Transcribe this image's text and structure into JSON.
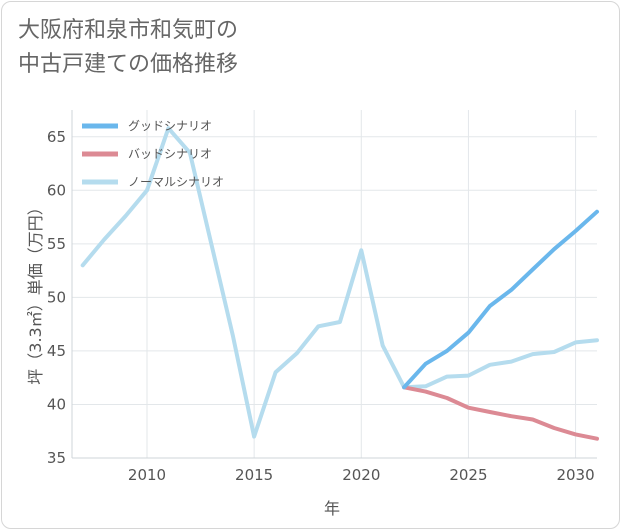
{
  "title_lines": [
    "大阪府和泉市和気町の",
    "中古戸建ての価格推移"
  ],
  "chart_data": {
    "type": "line",
    "title": "大阪府和泉市和気町の中古戸建ての価格推移",
    "xlabel": "年",
    "ylabel": "坪（3.3㎡）単価（万円）",
    "xlim": [
      2006.5,
      2031
    ],
    "ylim": [
      35,
      67.5
    ],
    "xticks": [
      2010,
      2015,
      2020,
      2025,
      2030
    ],
    "yticks": [
      35,
      40,
      45,
      50,
      55,
      60,
      65
    ],
    "grid": true,
    "legend_position": "top-left",
    "series": [
      {
        "name": "グッドシナリオ",
        "color": "#6ab7ec",
        "x": [
          2022,
          2023,
          2024,
          2025,
          2026,
          2027,
          2028,
          2029,
          2030,
          2031
        ],
        "y": [
          41.6,
          43.8,
          45.0,
          46.7,
          49.2,
          50.7,
          52.6,
          54.5,
          56.2,
          58.0
        ]
      },
      {
        "name": "バッドシナリオ",
        "color": "#dc8a94",
        "x": [
          2022,
          2023,
          2024,
          2025,
          2026,
          2027,
          2028,
          2029,
          2030,
          2031
        ],
        "y": [
          41.6,
          41.2,
          40.6,
          39.7,
          39.3,
          38.9,
          38.6,
          37.8,
          37.2,
          36.8
        ]
      },
      {
        "name": "ノーマルシナリオ",
        "color": "#b5dcee",
        "x": [
          2007,
          2008,
          2009,
          2010,
          2011,
          2012,
          2013,
          2014,
          2015,
          2016,
          2017,
          2018,
          2019,
          2020,
          2021,
          2022,
          2023,
          2024,
          2025,
          2026,
          2027,
          2028,
          2029,
          2030,
          2031
        ],
        "y": [
          53.0,
          55.4,
          57.6,
          60.0,
          65.8,
          63.5,
          55.0,
          46.5,
          37.0,
          43.0,
          44.8,
          47.3,
          47.7,
          54.4,
          45.5,
          41.6,
          41.7,
          42.6,
          42.7,
          43.7,
          44.0,
          44.7,
          44.9,
          45.8,
          46.0
        ]
      }
    ]
  }
}
